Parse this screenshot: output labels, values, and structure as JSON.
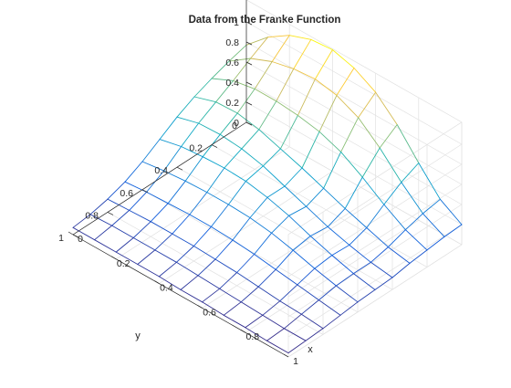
{
  "chart_data": {
    "type": "mesh",
    "title": "Data from the Franke Function",
    "xlabel": "x",
    "ylabel": "y",
    "zlabel": "",
    "xlim": [
      0,
      1
    ],
    "ylim": [
      0,
      1
    ],
    "zlim": [
      0,
      1.22
    ],
    "x_ticks": [
      0,
      0.2,
      0.4,
      0.6,
      0.8,
      1
    ],
    "y_ticks": [
      0,
      0.2,
      0.4,
      0.6,
      0.8,
      1
    ],
    "z_ticks": [
      0,
      0.2,
      0.4,
      0.6,
      0.8,
      1
    ],
    "x_tick_labels": [
      "0",
      "0.2",
      "0.4",
      "0.6",
      "0.8",
      "1"
    ],
    "y_tick_labels": [
      "0",
      "0.2",
      "0.4",
      "0.6",
      "0.8",
      "1"
    ],
    "z_tick_labels": [
      "0",
      "0.2",
      "0.4",
      "0.6",
      "0.8",
      "1"
    ],
    "grid": true,
    "colormap": "parula",
    "colormap_colors": [
      "#352a87",
      "#0f5cdd",
      "#1481d6",
      "#06a4ca",
      "#2eb7a4",
      "#87bf77",
      "#d1bb59",
      "#fec832",
      "#f9fb0e"
    ],
    "x_samples": [
      0.0,
      0.1,
      0.2,
      0.3,
      0.4,
      0.5,
      0.6,
      0.7,
      0.8,
      0.9,
      1.0
    ],
    "y_samples": [
      0.0,
      0.1,
      0.2,
      0.3,
      0.4,
      0.5,
      0.6,
      0.7,
      0.8,
      0.9,
      1.0
    ],
    "z": [
      [
        0.77,
        0.97,
        1.11,
        1.19,
        1.21,
        1.15,
        1.03,
        0.83,
        0.57,
        0.33,
        0.2
      ],
      [
        0.72,
        0.87,
        0.96,
        1.01,
        1.03,
        0.99,
        0.89,
        0.71,
        0.49,
        0.3,
        0.19
      ],
      [
        0.66,
        0.76,
        0.8,
        0.8,
        0.78,
        0.74,
        0.66,
        0.53,
        0.38,
        0.25,
        0.17
      ],
      [
        0.59,
        0.66,
        0.67,
        0.63,
        0.56,
        0.49,
        0.41,
        0.33,
        0.26,
        0.19,
        0.15
      ],
      [
        0.5,
        0.56,
        0.57,
        0.55,
        0.5,
        0.42,
        0.34,
        0.26,
        0.2,
        0.15,
        0.12
      ],
      [
        0.39,
        0.44,
        0.46,
        0.47,
        0.46,
        0.42,
        0.36,
        0.28,
        0.21,
        0.15,
        0.11
      ],
      [
        0.28,
        0.31,
        0.33,
        0.34,
        0.34,
        0.33,
        0.3,
        0.25,
        0.19,
        0.14,
        0.1
      ],
      [
        0.19,
        0.21,
        0.22,
        0.23,
        0.23,
        0.22,
        0.2,
        0.17,
        0.14,
        0.11,
        0.08
      ],
      [
        0.13,
        0.14,
        0.15,
        0.15,
        0.15,
        0.14,
        0.13,
        0.11,
        0.09,
        0.08,
        0.06
      ],
      [
        0.09,
        0.1,
        0.1,
        0.1,
        0.1,
        0.09,
        0.08,
        0.07,
        0.06,
        0.05,
        0.05
      ],
      [
        0.07,
        0.07,
        0.07,
        0.07,
        0.07,
        0.06,
        0.06,
        0.05,
        0.05,
        0.04,
        0.04
      ]
    ]
  }
}
